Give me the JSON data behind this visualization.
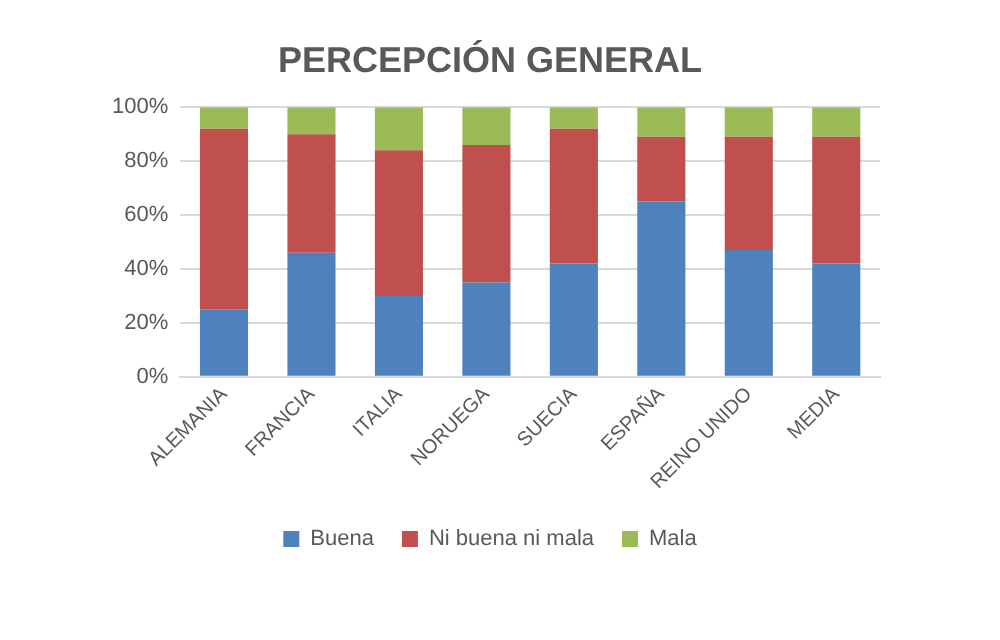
{
  "chart_data": {
    "type": "bar",
    "title": "PERCEPCIÓN GENERAL",
    "stacked": true,
    "categories": [
      "ALEMANIA",
      "FRANCIA",
      "ITALIA",
      "NORUEGA",
      "SUECIA",
      "ESPAÑA",
      "REINO UNIDO",
      "MEDIA"
    ],
    "series": [
      {
        "name": "Buena",
        "color": "#4f81bd",
        "values": [
          25,
          46,
          30,
          35,
          42,
          65,
          47,
          42
        ]
      },
      {
        "name": "Ni buena ni mala",
        "color": "#c0504d",
        "values": [
          67,
          44,
          54,
          51,
          50,
          24,
          42,
          47
        ]
      },
      {
        "name": "Mala",
        "color": "#9bbb59",
        "values": [
          8,
          10,
          16,
          14,
          8,
          11,
          11,
          11
        ]
      }
    ],
    "ylim": [
      0,
      100
    ],
    "yticks": [
      {
        "value": 0,
        "label": "0%"
      },
      {
        "value": 20,
        "label": "20%"
      },
      {
        "value": 40,
        "label": "40%"
      },
      {
        "value": 60,
        "label": "60%"
      },
      {
        "value": 80,
        "label": "80%"
      },
      {
        "value": 100,
        "label": "100%"
      }
    ],
    "grid": "y",
    "legend": "bottom"
  }
}
